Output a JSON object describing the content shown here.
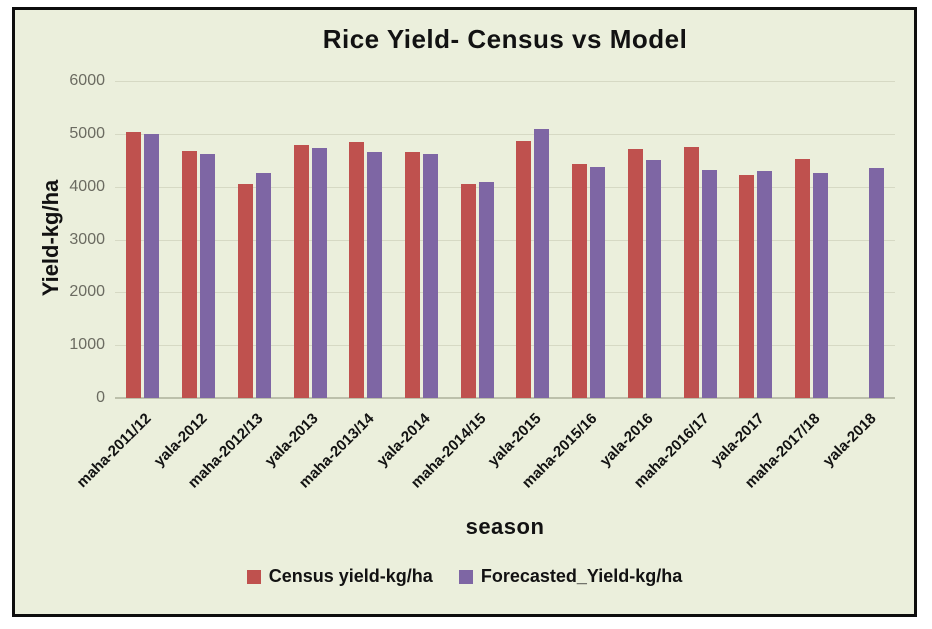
{
  "chart": {
    "background_color": "#ebefdc",
    "frame_border_color": "#0d0d0d",
    "gridline_color": "#d6d9c4",
    "tick_label_color": "#6b6b61"
  },
  "chart_data": {
    "type": "bar",
    "title": "Rice Yield- Census vs Model",
    "xlabel": "season",
    "ylabel": "Yield-kg/ha",
    "ylim": [
      0,
      6000
    ],
    "y_ticks": [
      0,
      1000,
      2000,
      3000,
      4000,
      5000,
      6000
    ],
    "grid": true,
    "legend_position": "bottom",
    "categories": [
      "maha-2011/12",
      "yala-2012",
      "maha-2012/13",
      "yala-2013",
      "maha-2013/14",
      "yala-2014",
      "maha-2014/15",
      "yala-2015",
      "maha-2015/16",
      "yala-2016",
      "maha-2016/17",
      "yala-2017",
      "maha-2017/18",
      "yala-2018"
    ],
    "series": [
      {
        "name": "Census yield-kg/ha",
        "color": "#bf514e",
        "values": [
          5030,
          4680,
          4050,
          4790,
          4840,
          4650,
          4060,
          4860,
          4430,
          4710,
          4750,
          4220,
          4520,
          null
        ]
      },
      {
        "name": "Forecasted_Yield-kg/ha",
        "color": "#7e66a4",
        "values": [
          4990,
          4610,
          4260,
          4730,
          4660,
          4620,
          4090,
          5090,
          4370,
          4510,
          4310,
          4290,
          4250,
          4360
        ]
      }
    ]
  }
}
